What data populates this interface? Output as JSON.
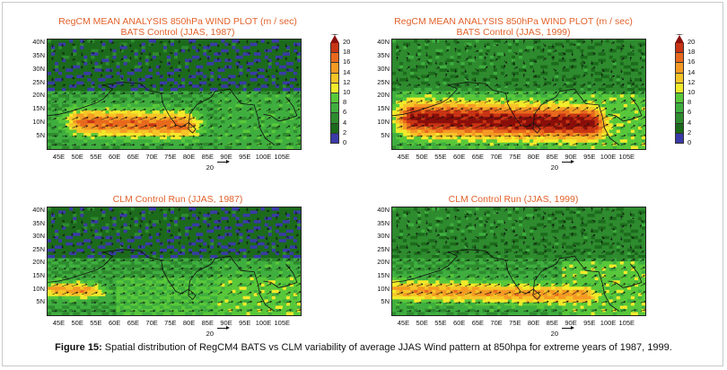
{
  "figure": {
    "caption_label": "Figure 15:",
    "caption_text": " Spatial distribution of RegCM4 BATS vs CLM variability of average JJAS Wind pattern at 850hpa for extreme years of 1987, 1999."
  },
  "colorbar": {
    "levels": [
      "0",
      "2",
      "4",
      "6",
      "8",
      "10",
      "12",
      "14",
      "16",
      "18",
      "20"
    ],
    "colors": [
      "#3a3aa8",
      "#1c6a1c",
      "#2e8b2e",
      "#3fae3f",
      "#58c83a",
      "#f2ea2a",
      "#f7c428",
      "#f49a24",
      "#e8691d",
      "#c83414"
    ],
    "over_color": "#8a0f0a"
  },
  "axes": {
    "lat_ticks": [
      "40N",
      "35N",
      "30N",
      "25N",
      "20N",
      "15N",
      "10N",
      "5N"
    ],
    "lon_ticks": [
      "45E",
      "50E",
      "55E",
      "60E",
      "65E",
      "70E",
      "75E",
      "80E",
      "85E",
      "90E",
      "95E",
      "100E",
      "105E"
    ],
    "ref_vector": "20"
  },
  "chart_data": [
    {
      "type": "heatmap",
      "title": "RegCM MEAN ANALYSIS 850hPa WIND PLOT (m / sec)",
      "subtitle": "BATS Control (JJAS, 1987)",
      "xlim": [
        42,
        110
      ],
      "ylim": [
        0,
        41
      ],
      "jet_core": {
        "lon": [
          52,
          78
        ],
        "lat": [
          6,
          13
        ],
        "max_speed": 16
      }
    },
    {
      "type": "heatmap",
      "title": "RegCM MEAN ANALYSIS 850hPa WIND PLOT (m / sec)",
      "subtitle": "BATS Control (JJAS, 1999)",
      "xlim": [
        42,
        110
      ],
      "ylim": [
        0,
        41
      ],
      "jet_core": {
        "lon": [
          48,
          95
        ],
        "lat": [
          5,
          16
        ],
        "max_speed": 20
      }
    },
    {
      "type": "heatmap",
      "title": "CLM Control Run (JJAS, 1987)",
      "xlim": [
        42,
        110
      ],
      "ylim": [
        0,
        41
      ],
      "jet_core": {
        "lon": [
          45,
          52
        ],
        "lat": [
          8,
          11
        ],
        "max_speed": 14
      }
    },
    {
      "type": "heatmap",
      "title": "CLM Control Run (JJAS, 1999)",
      "xlim": [
        42,
        110
      ],
      "ylim": [
        0,
        41
      ],
      "jet_core": {
        "lon": [
          45,
          93
        ],
        "lat": [
          6,
          11
        ],
        "max_speed": 14
      }
    }
  ]
}
